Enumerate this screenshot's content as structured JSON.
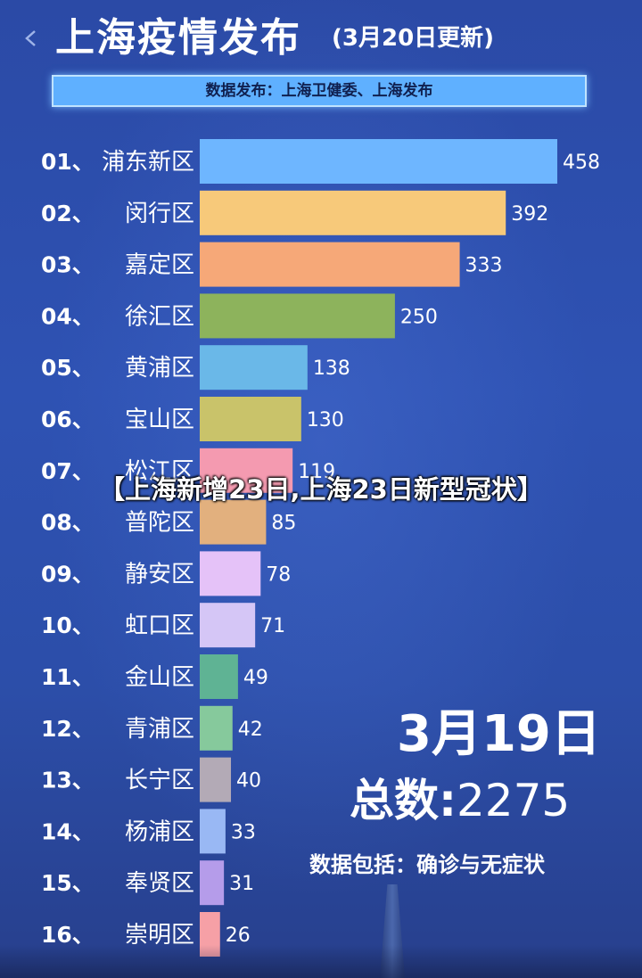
{
  "header": {
    "title": "上海疫情发布",
    "date_note": "(3月20日更新)"
  },
  "source": "数据发布：上海卫健委、上海发布",
  "overlay_title": "【上海新增23日,上海23日新型冠状】",
  "summary": {
    "date": "3月19日",
    "total_label": "总数:",
    "total_value": "2275",
    "note": "数据包括：确诊与无症状"
  },
  "chart_data": {
    "type": "bar",
    "orientation": "horizontal",
    "title": "上海疫情发布",
    "categories": [
      "浦东新区",
      "闵行区",
      "嘉定区",
      "徐汇区",
      "黄浦区",
      "宝山区",
      "松江区",
      "普陀区",
      "静安区",
      "虹口区",
      "金山区",
      "青浦区",
      "长宁区",
      "杨浦区",
      "奉贤区",
      "崇明区"
    ],
    "rank_labels": [
      "01、",
      "02、",
      "03、",
      "04、",
      "05、",
      "06、",
      "07、",
      "08、",
      "09、",
      "10、",
      "11、",
      "12、",
      "13、",
      "14、",
      "15、",
      "16、"
    ],
    "values": [
      458,
      392,
      333,
      250,
      138,
      130,
      119,
      85,
      78,
      71,
      49,
      42,
      40,
      33,
      31,
      26
    ],
    "colors": [
      "#6eb6ff",
      "#f7c97a",
      "#f6a878",
      "#8db35c",
      "#6ab8e8",
      "#c9c36a",
      "#f49ab0",
      "#e2b07e",
      "#e5c2f8",
      "#d5c6f6",
      "#5fb394",
      "#86c99c",
      "#b3aab6",
      "#99b8f4",
      "#b59cea",
      "#f6a0a6"
    ],
    "xlim": [
      0,
      458
    ]
  }
}
